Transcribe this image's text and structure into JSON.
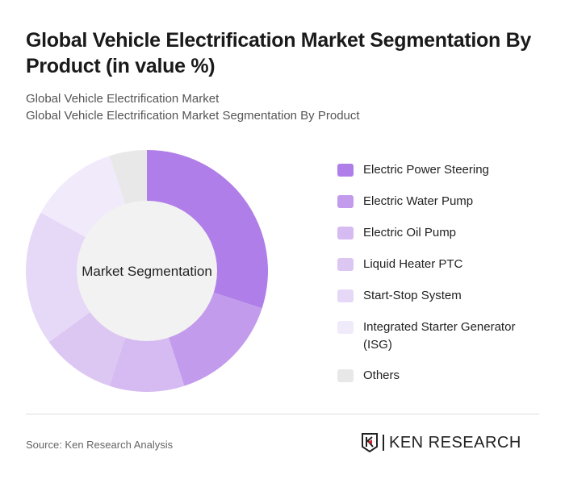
{
  "title": "Global Vehicle Electrification Market Segmentation By Product (in value %)",
  "subtitle1": "Global Vehicle Electrification Market",
  "subtitle2": "Global Vehicle Electrification Market Segmentation By Product",
  "source": "Source: Ken Research Analysis",
  "logo": "KEN RESEARCH",
  "chart_data": {
    "type": "pie",
    "donut": true,
    "center_label": "Market Segmentation",
    "legend_position": "right",
    "categories": [
      "Electric Power Steering",
      "Electric Water Pump",
      "Electric Oil Pump",
      "Liquid Heater PTC",
      "Start-Stop System",
      "Integrated Starter Generator (ISG)",
      "Others"
    ],
    "values": [
      30,
      15,
      10,
      10,
      18,
      12,
      5
    ],
    "colors": [
      "#b07ee8",
      "#c39bec",
      "#d6baf2",
      "#dcc7f3",
      "#e6d8f7",
      "#f1eafb",
      "#e8e8e8"
    ]
  }
}
